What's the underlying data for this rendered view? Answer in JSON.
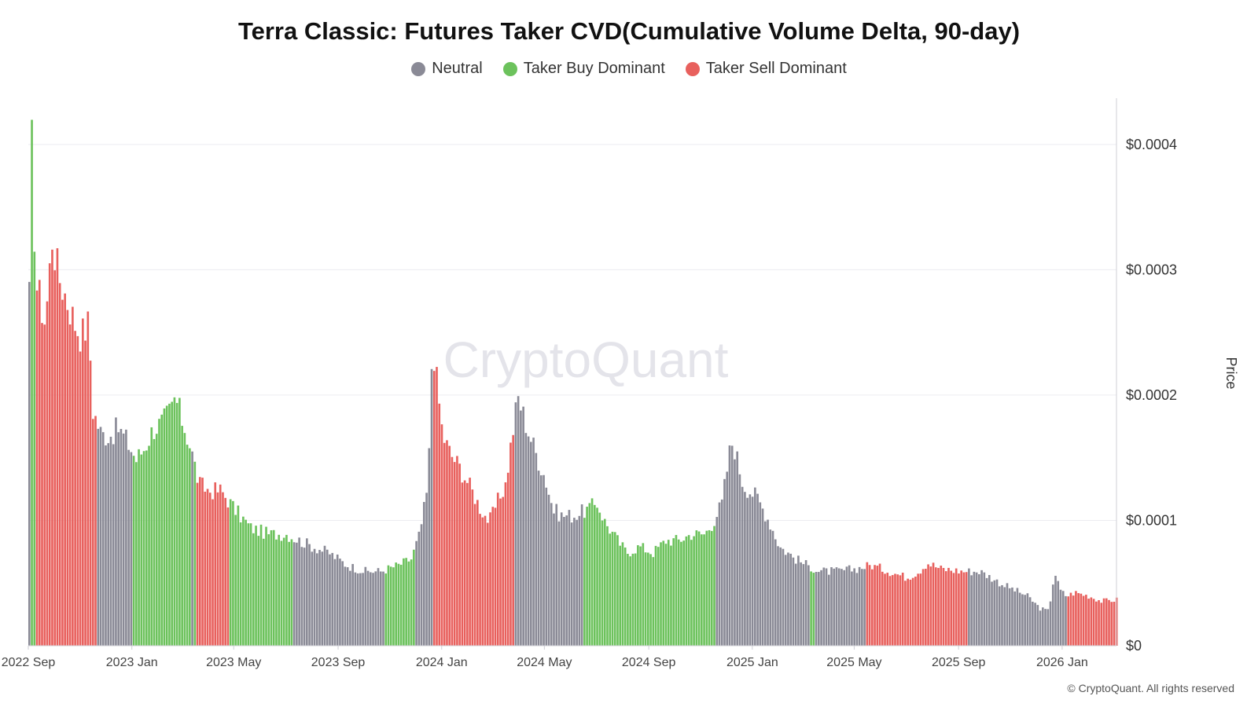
{
  "title": "Terra Classic: Futures Taker CVD(Cumulative Volume Delta, 90-day)",
  "legend": [
    {
      "label": "Neutral",
      "color": "#8a8a96"
    },
    {
      "label": "Taker Buy Dominant",
      "color": "#6cc25c"
    },
    {
      "label": "Taker Sell Dominant",
      "color": "#e8605d"
    }
  ],
  "watermark": "CryptoQuant",
  "copyright": "© CryptoQuant. All rights reserved",
  "chart_data": {
    "type": "bar",
    "title": "Terra Classic: Futures Taker CVD(Cumulative Volume Delta, 90-day)",
    "y2label": "Price",
    "ylim": [
      0,
      0.00044
    ],
    "y_ticks": [
      {
        "value": 0,
        "label": "$0"
      },
      {
        "value": 0.0001,
        "label": "$0.0001"
      },
      {
        "value": 0.0002,
        "label": "$0.0002"
      },
      {
        "value": 0.0003,
        "label": "$0.0003"
      },
      {
        "value": 0.0004,
        "label": "$0.0004"
      }
    ],
    "x_ticks": [
      "2022 Sep",
      "2023 Jan",
      "2023 May",
      "2023 Sep",
      "2024 Jan",
      "2024 May",
      "2024 Sep",
      "2025 Jan",
      "2025 May",
      "2025 Sep",
      "2026 Jan"
    ],
    "x_start": "2022-09-01",
    "x_end": "2026-03-06",
    "grid": true,
    "legend_position": "top-center",
    "series": [
      {
        "name": "Price",
        "date_value_points": [
          [
            "2022-09-01",
            0.00028
          ],
          [
            "2022-09-03",
            0.00043
          ],
          [
            "2022-09-06",
            0.00035
          ],
          [
            "2022-09-10",
            0.00029
          ],
          [
            "2022-09-20",
            0.00026
          ],
          [
            "2022-09-28",
            0.00033
          ],
          [
            "2022-10-05",
            0.0003
          ],
          [
            "2022-10-15",
            0.00028
          ],
          [
            "2022-10-25",
            0.00026
          ],
          [
            "2022-11-01",
            0.00025
          ],
          [
            "2022-11-10",
            0.00026
          ],
          [
            "2022-11-15",
            0.00019
          ],
          [
            "2022-11-25",
            0.00017
          ],
          [
            "2022-12-05",
            0.00017
          ],
          [
            "2022-12-15",
            0.000175
          ],
          [
            "2022-12-25",
            0.000165
          ],
          [
            "2023-01-05",
            0.00015
          ],
          [
            "2023-01-15",
            0.00016
          ],
          [
            "2023-01-25",
            0.000175
          ],
          [
            "2023-02-05",
            0.00018
          ],
          [
            "2023-02-15",
            0.00019
          ],
          [
            "2023-02-20",
            0.0002
          ],
          [
            "2023-03-01",
            0.00018
          ],
          [
            "2023-03-10",
            0.00016
          ],
          [
            "2023-03-20",
            0.00013
          ],
          [
            "2023-04-01",
            0.000125
          ],
          [
            "2023-04-15",
            0.000125
          ],
          [
            "2023-05-01",
            0.00011
          ],
          [
            "2023-05-20",
            9.5e-05
          ],
          [
            "2023-06-10",
            9e-05
          ],
          [
            "2023-07-01",
            9e-05
          ],
          [
            "2023-07-15",
            8.5e-05
          ],
          [
            "2023-08-01",
            8e-05
          ],
          [
            "2023-08-20",
            7.5e-05
          ],
          [
            "2023-09-10",
            6.5e-05
          ],
          [
            "2023-10-01",
            6e-05
          ],
          [
            "2023-10-20",
            6e-05
          ],
          [
            "2023-11-10",
            6.5e-05
          ],
          [
            "2023-11-25",
            7e-05
          ],
          [
            "2023-12-05",
            9e-05
          ],
          [
            "2023-12-15",
            0.00013
          ],
          [
            "2023-12-20",
            0.00025
          ],
          [
            "2023-12-24",
            0.00022
          ],
          [
            "2024-01-01",
            0.00017
          ],
          [
            "2024-01-10",
            0.000155
          ],
          [
            "2024-01-20",
            0.000145
          ],
          [
            "2024-02-01",
            0.00013
          ],
          [
            "2024-02-15",
            0.00011
          ],
          [
            "2024-02-25",
            0.0001
          ],
          [
            "2024-03-05",
            0.000115
          ],
          [
            "2024-03-15",
            0.00013
          ],
          [
            "2024-03-25",
            0.00018
          ],
          [
            "2024-03-30",
            0.0002
          ],
          [
            "2024-04-10",
            0.000175
          ],
          [
            "2024-04-20",
            0.000155
          ],
          [
            "2024-05-01",
            0.000135
          ],
          [
            "2024-05-10",
            0.00011
          ],
          [
            "2024-05-20",
            0.000105
          ],
          [
            "2024-06-05",
            0.000105
          ],
          [
            "2024-06-20",
            0.00011
          ],
          [
            "2024-07-01",
            0.000115
          ],
          [
            "2024-07-10",
            0.0001
          ],
          [
            "2024-07-25",
            8.5e-05
          ],
          [
            "2024-08-05",
            7.5e-05
          ],
          [
            "2024-08-20",
            8e-05
          ],
          [
            "2024-09-05",
            7.5e-05
          ],
          [
            "2024-09-20",
            8.5e-05
          ],
          [
            "2024-10-05",
            8.5e-05
          ],
          [
            "2024-10-20",
            9e-05
          ],
          [
            "2024-11-05",
            9e-05
          ],
          [
            "2024-11-15",
            0.0001
          ],
          [
            "2024-11-25",
            0.000115
          ],
          [
            "2024-12-05",
            0.00016
          ],
          [
            "2024-12-08",
            0.000165
          ],
          [
            "2024-12-20",
            0.00013
          ],
          [
            "2025-01-05",
            0.00012
          ],
          [
            "2025-01-20",
            0.0001
          ],
          [
            "2025-02-01",
            8e-05
          ],
          [
            "2025-02-20",
            7e-05
          ],
          [
            "2025-03-05",
            6.5e-05
          ],
          [
            "2025-03-20",
            6e-05
          ],
          [
            "2025-04-10",
            6e-05
          ],
          [
            "2025-05-01",
            6.2e-05
          ],
          [
            "2025-05-20",
            6.5e-05
          ],
          [
            "2025-06-10",
            6e-05
          ],
          [
            "2025-07-01",
            5.5e-05
          ],
          [
            "2025-07-15",
            6e-05
          ],
          [
            "2025-07-25",
            6.7e-05
          ],
          [
            "2025-08-10",
            6.2e-05
          ],
          [
            "2025-09-05",
            6e-05
          ],
          [
            "2025-09-25",
            6e-05
          ],
          [
            "2025-10-08",
            5.5e-05
          ],
          [
            "2025-10-20",
            5e-05
          ],
          [
            "2025-11-05",
            4.5e-05
          ],
          [
            "2025-11-20",
            4e-05
          ],
          [
            "2025-12-05",
            3e-05
          ],
          [
            "2025-12-15",
            2.8e-05
          ],
          [
            "2025-12-22",
            6e-05
          ],
          [
            "2025-12-28",
            4.5e-05
          ],
          [
            "2026-01-05",
            4e-05
          ],
          [
            "2026-01-15",
            4.3e-05
          ],
          [
            "2026-02-01",
            4e-05
          ],
          [
            "2026-02-15",
            3.6e-05
          ],
          [
            "2026-03-05",
            3.7e-05
          ]
        ]
      },
      {
        "name": "Neutral",
        "date_ranges": [
          [
            "2022-11-20",
            "2023-01-02"
          ],
          [
            "2023-03-10",
            "2023-03-14"
          ],
          [
            "2023-07-10",
            "2023-10-25"
          ],
          [
            "2023-12-01",
            "2023-12-20"
          ],
          [
            "2024-03-27",
            "2024-06-15"
          ],
          [
            "2024-11-18",
            "2025-03-09"
          ],
          [
            "2025-03-16",
            "2025-05-15"
          ],
          [
            "2025-09-10",
            "2026-01-05"
          ]
        ]
      },
      {
        "name": "Taker Buy Dominant",
        "date_ranges": [
          [
            "2022-09-02",
            "2022-09-09"
          ],
          [
            "2023-01-02",
            "2023-03-10"
          ],
          [
            "2023-03-14",
            "2023-03-17"
          ],
          [
            "2023-04-25",
            "2023-07-10"
          ],
          [
            "2023-10-25",
            "2023-12-01"
          ],
          [
            "2024-06-15",
            "2024-11-18"
          ],
          [
            "2025-03-09",
            "2025-03-16"
          ]
        ]
      },
      {
        "name": "Taker Sell Dominant",
        "date_ranges": [
          [
            "2022-09-09",
            "2022-11-20"
          ],
          [
            "2023-03-17",
            "2023-04-25"
          ],
          [
            "2023-12-20",
            "2024-03-27"
          ],
          [
            "2025-05-15",
            "2025-09-10"
          ],
          [
            "2026-01-05",
            "2026-03-06"
          ]
        ]
      }
    ]
  }
}
